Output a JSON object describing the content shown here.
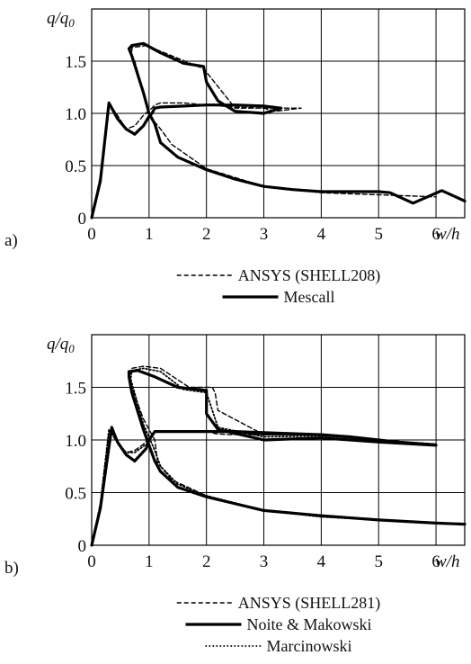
{
  "chart_data": [
    {
      "type": "line",
      "panel_label": "a)",
      "ylabel": "q/q0",
      "xlabel": "w/h",
      "xlim": [
        0,
        6.5
      ],
      "ylim": [
        0,
        2.0
      ],
      "x_ticks": [
        "0",
        "1",
        "2",
        "3",
        "4",
        "5",
        "6"
      ],
      "y_ticks": [
        "0",
        "0.5",
        "1.0",
        "1.5"
      ],
      "grid": true,
      "legend_position": "below",
      "series": [
        {
          "name": "ANSYS (SHELL208)",
          "style": "dashed",
          "x": [
            0,
            0.15,
            0.3,
            0.45,
            0.6,
            0.75,
            0.9,
            1.05,
            1.1,
            1.2,
            1.6,
            2.0,
            2.5,
            3.0,
            3.2,
            3.65,
            3.2,
            2.5,
            1.95,
            1.85,
            1.4,
            0.95,
            0.7,
            0.7,
            0.75,
            0.9,
            1.0,
            1.05,
            1.2,
            1.4,
            2.0,
            3.0,
            4.0,
            5.0,
            6.0
          ],
          "y": [
            0,
            0.4,
            1.1,
            0.98,
            0.85,
            0.88,
            0.98,
            1.05,
            1.08,
            1.1,
            1.1,
            1.08,
            1.06,
            1.05,
            1.02,
            1.05,
            1.05,
            1.05,
            1.43,
            1.45,
            1.55,
            1.65,
            1.63,
            1.55,
            1.5,
            1.2,
            1.0,
            0.95,
            0.85,
            0.7,
            0.47,
            0.3,
            0.24,
            0.22,
            0.2
          ]
        },
        {
          "name": "Mescall",
          "style": "solid",
          "x": [
            0,
            0.15,
            0.3,
            0.45,
            0.6,
            0.75,
            0.9,
            1.0,
            1.05,
            1.1,
            1.2,
            1.6,
            2.0,
            2.5,
            3.0,
            3.3,
            3.0,
            2.5,
            2.2,
            2.0,
            1.95,
            1.6,
            1.2,
            0.9,
            0.7,
            0.65,
            0.7,
            0.9,
            1.0,
            1.1,
            1.2,
            1.5,
            2.0,
            2.5,
            3.0,
            3.5,
            4.0,
            4.5,
            5.0,
            5.2,
            5.6,
            6.1,
            6.5
          ],
          "y": [
            0,
            0.35,
            1.1,
            0.95,
            0.85,
            0.8,
            0.88,
            0.97,
            1.0,
            1.05,
            1.06,
            1.07,
            1.08,
            1.08,
            1.07,
            1.05,
            1.0,
            1.02,
            1.12,
            1.3,
            1.45,
            1.48,
            1.58,
            1.67,
            1.65,
            1.62,
            1.55,
            1.2,
            1.0,
            0.9,
            0.72,
            0.58,
            0.46,
            0.37,
            0.3,
            0.27,
            0.25,
            0.25,
            0.25,
            0.24,
            0.14,
            0.26,
            0.16
          ]
        }
      ]
    },
    {
      "type": "line",
      "panel_label": "b)",
      "ylabel": "q/q0",
      "xlabel": "w/h",
      "xlim": [
        0,
        6.5
      ],
      "ylim": [
        0,
        2.0
      ],
      "x_ticks": [
        "0",
        "1",
        "2",
        "3",
        "4",
        "5",
        "6"
      ],
      "y_ticks": [
        "0",
        "0.5",
        "1.0",
        "1.5"
      ],
      "grid": true,
      "legend_position": "below",
      "series": [
        {
          "name": "ANSYS (SHELL281)",
          "style": "dashed",
          "x": [
            0,
            0.15,
            0.3,
            0.45,
            0.6,
            0.75,
            0.9,
            1.0,
            1.1,
            1.15,
            1.6,
            2.0,
            2.1,
            2.15,
            2.4,
            3.0,
            4.0,
            5.0,
            6.0,
            5.0,
            4.0,
            3.0,
            2.2,
            2.15,
            2.1,
            1.7,
            1.2,
            0.9,
            0.7,
            0.65,
            0.7,
            0.9,
            1.1,
            1.15,
            1.4,
            2.0,
            3.0,
            4.0,
            5.0,
            6.5
          ],
          "y": [
            0,
            0.4,
            1.08,
            0.98,
            0.88,
            0.9,
            0.96,
            1.02,
            1.08,
            1.08,
            1.08,
            1.08,
            1.07,
            1.06,
            1.05,
            1.05,
            1.05,
            1.0,
            0.96,
            1.0,
            1.05,
            1.05,
            1.28,
            1.45,
            1.5,
            1.5,
            1.68,
            1.7,
            1.68,
            1.6,
            1.5,
            1.2,
            1.0,
            0.78,
            0.62,
            0.47,
            0.33,
            0.27,
            0.24,
            0.2
          ]
        },
        {
          "name": "Noite & Makowski",
          "style": "solid",
          "x": [
            0,
            0.15,
            0.35,
            0.45,
            0.6,
            0.75,
            0.95,
            1.0,
            1.1,
            1.1,
            1.6,
            2.0,
            2.5,
            3.0,
            3.5,
            4.0,
            4.5,
            5.0,
            5.5,
            6.0,
            5.0,
            4.0,
            3.0,
            2.2,
            2.0,
            2.0,
            1.5,
            1.1,
            0.8,
            0.65,
            0.65,
            0.7,
            0.9,
            1.0,
            1.1,
            1.2,
            1.5,
            2.0,
            3.0,
            4.0,
            5.0,
            6.0,
            6.5
          ],
          "y": [
            0,
            0.35,
            1.12,
            0.98,
            0.86,
            0.8,
            0.92,
            1.0,
            1.08,
            1.08,
            1.08,
            1.08,
            1.08,
            1.07,
            1.06,
            1.05,
            1.03,
            1.0,
            0.97,
            0.95,
            0.98,
            1.02,
            1.0,
            1.1,
            1.25,
            1.47,
            1.5,
            1.6,
            1.66,
            1.65,
            1.6,
            1.45,
            1.1,
            0.95,
            0.8,
            0.7,
            0.55,
            0.46,
            0.33,
            0.28,
            0.24,
            0.21,
            0.2
          ]
        },
        {
          "name": "Marcinowski",
          "style": "dotted",
          "x": [
            0,
            0.15,
            0.3,
            0.45,
            0.6,
            0.75,
            0.95,
            1.05,
            1.1,
            1.6,
            2.0,
            2.5,
            3.0,
            4.0,
            5.0,
            6.0,
            5.0,
            4.0,
            3.0,
            2.2,
            2.0,
            1.6,
            1.2,
            0.9,
            0.7,
            0.68,
            0.72,
            0.9,
            1.1,
            1.2,
            1.5,
            2.0,
            3.0,
            4.0,
            5.0,
            6.5
          ],
          "y": [
            0,
            0.38,
            1.1,
            0.98,
            0.88,
            0.88,
            0.96,
            1.05,
            1.08,
            1.08,
            1.08,
            1.07,
            1.05,
            1.05,
            1.0,
            0.96,
            1.0,
            1.04,
            1.03,
            1.12,
            1.45,
            1.48,
            1.65,
            1.68,
            1.66,
            1.58,
            1.5,
            1.15,
            0.9,
            0.75,
            0.58,
            0.47,
            0.33,
            0.27,
            0.24,
            0.2
          ]
        }
      ]
    }
  ]
}
